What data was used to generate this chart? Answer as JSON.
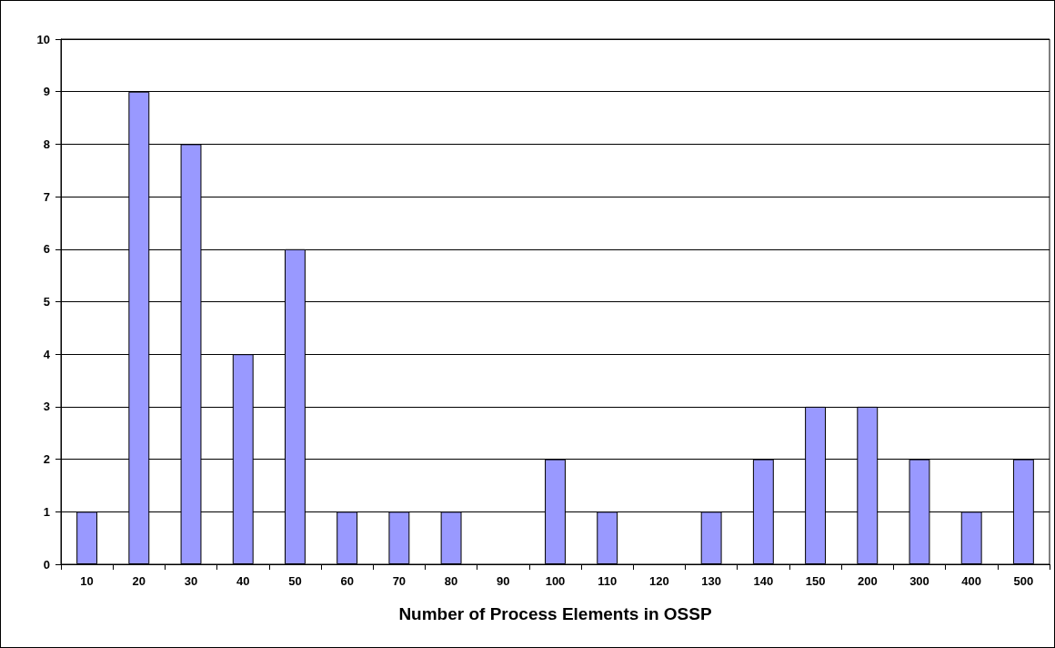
{
  "chart_data": {
    "type": "bar",
    "xlabel": "Number of Process Elements in OSSP",
    "categories": [
      "10",
      "20",
      "30",
      "40",
      "50",
      "60",
      "70",
      "80",
      "90",
      "100",
      "110",
      "120",
      "130",
      "140",
      "150",
      "200",
      "300",
      "400",
      "500"
    ],
    "values": [
      1,
      9,
      8,
      4,
      6,
      1,
      1,
      1,
      0,
      2,
      1,
      0,
      1,
      2,
      3,
      3,
      2,
      1,
      2
    ],
    "color": "#9999ff",
    "ylim": [
      0,
      10
    ],
    "yticks": [
      0,
      1,
      2,
      3,
      4,
      5,
      6,
      7,
      8,
      9,
      10
    ],
    "grid": "y"
  }
}
